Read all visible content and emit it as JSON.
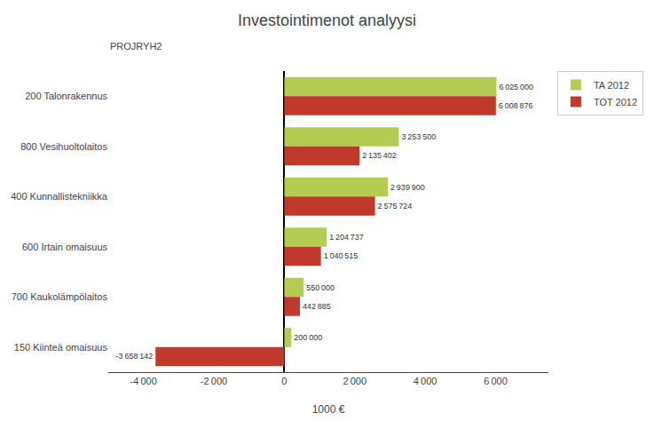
{
  "chart_data": {
    "type": "bar",
    "orientation": "horizontal",
    "title": "Investointimenot analyysi",
    "subtitle": "PROJRYH2",
    "xlabel": "1000 €",
    "categories": [
      "200 Talonrakennus",
      "800 Vesihuoltolaitos",
      "400 Kunnallistekniikka",
      "600 Irtain omaisuus",
      "700 Kaukolämpölaitos",
      "150 Kiinteä omaisuus"
    ],
    "series": [
      {
        "name": "TA 2012",
        "color": "#b5cc53",
        "values": [
          6025000,
          3253500,
          2939900,
          1204737,
          550000,
          200000
        ],
        "value_labels": [
          "6 025 000",
          "3 253 500",
          "2 939 900",
          "1 204 737",
          "550 000",
          "200 000"
        ]
      },
      {
        "name": "TOT 2012",
        "color": "#c0392b",
        "values": [
          6008876,
          2135402,
          2575724,
          1040515,
          442885,
          -3658142
        ],
        "value_labels": [
          "6 008 876",
          "2 135 402",
          "2 575 724",
          "1 040 515",
          "442 885",
          "-3 658 142"
        ]
      }
    ],
    "xlim": [
      -5000000,
      7500000
    ],
    "xticks": [
      {
        "value": -4000000,
        "label": "-4 000"
      },
      {
        "value": -2000000,
        "label": "-2 000"
      },
      0,
      {
        "value": 2000000,
        "label": "2 000"
      },
      {
        "value": 4000000,
        "label": "4 000"
      },
      {
        "value": 6000000,
        "label": "6 000"
      }
    ],
    "data_labels": true,
    "grid": false,
    "legend": "upper right"
  }
}
